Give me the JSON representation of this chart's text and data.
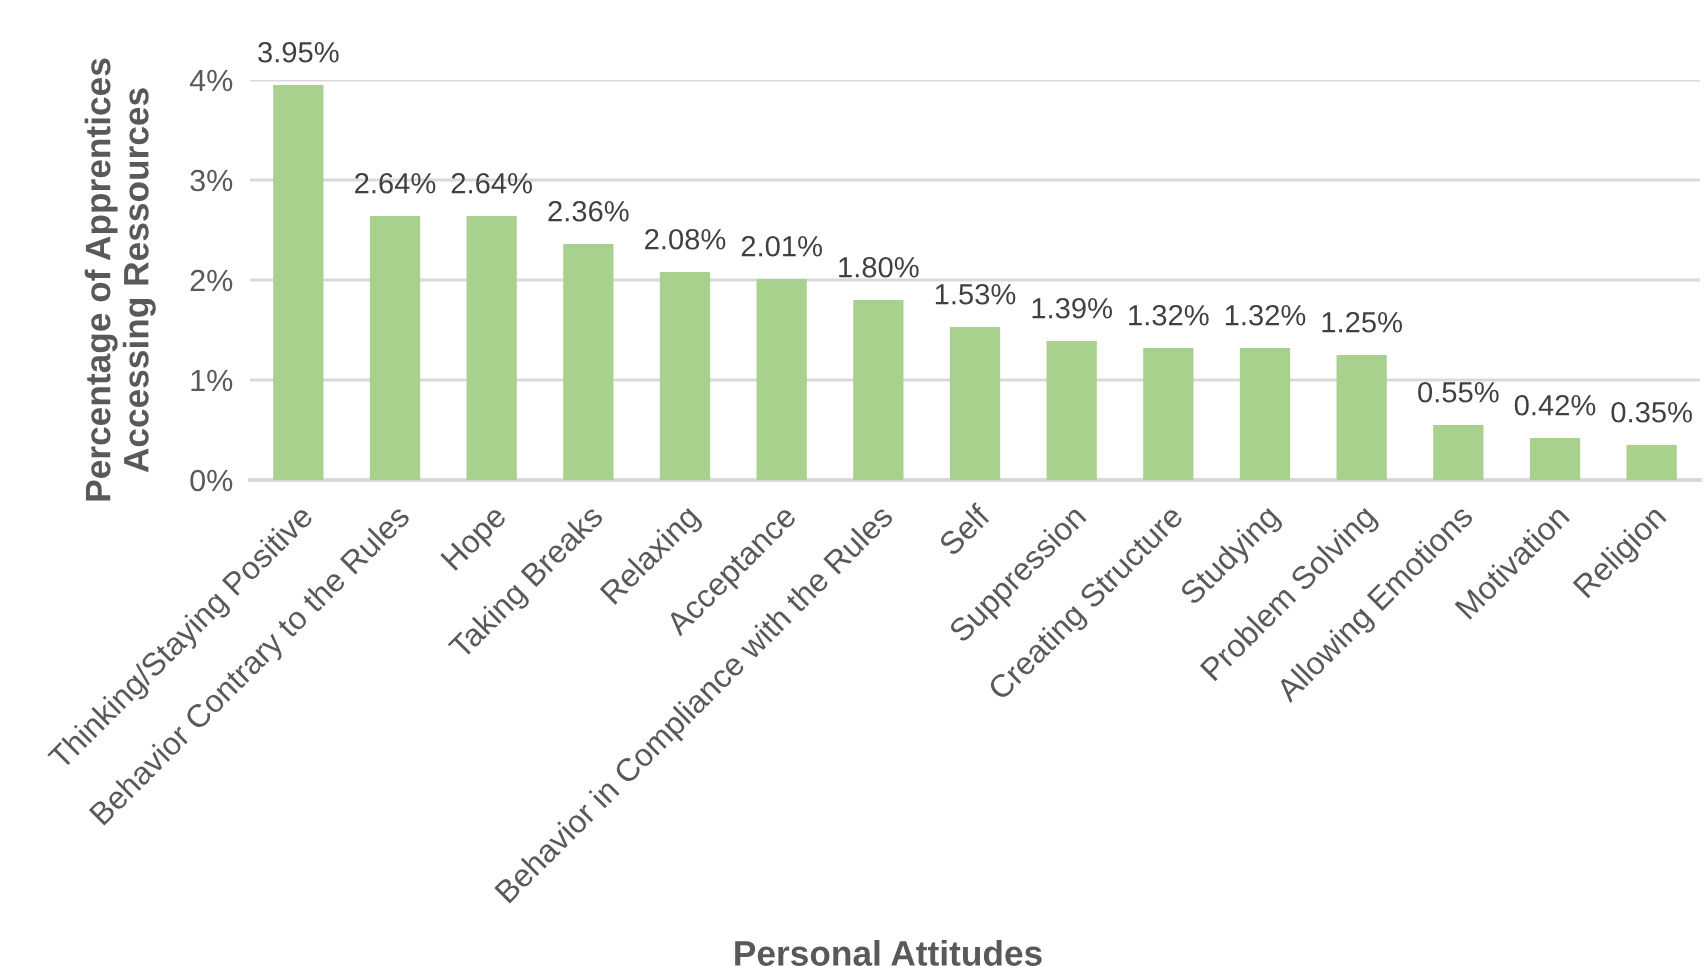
{
  "chart_data": {
    "type": "bar",
    "xlabel": "Personal Attitudes",
    "ylabel": "Percentage of Apprentices\nAccessing Ressources",
    "categories": [
      "Thinking/Staying Positive",
      "Behavior Contrary to the Rules",
      "Hope",
      "Taking Breaks",
      "Relaxing",
      "Acceptance",
      "Behavior in Compliance with the Rules",
      "Self",
      "Suppression",
      "Creating Structure",
      "Studying",
      "Problem Solving",
      "Allowing Emotions",
      "Motivation",
      "Religion"
    ],
    "values": [
      3.95,
      2.64,
      2.64,
      2.36,
      2.08,
      2.01,
      1.8,
      1.53,
      1.39,
      1.32,
      1.32,
      1.25,
      0.55,
      0.42,
      0.35
    ],
    "value_labels": [
      "3.95%",
      "2.64%",
      "2.64%",
      "2.36%",
      "2.08%",
      "2.01%",
      "1.80%",
      "1.53%",
      "1.39%",
      "1.32%",
      "1.32%",
      "1.25%",
      "0.55%",
      "0.42%",
      "0.35%"
    ],
    "color": "#a9d18e",
    "ylim": [
      0,
      4
    ],
    "yticks": [
      {
        "value": 0,
        "label": "0%"
      },
      {
        "value": 1,
        "label": "1%"
      },
      {
        "value": 2,
        "label": "2%"
      },
      {
        "value": 3,
        "label": "3%"
      },
      {
        "value": 4,
        "label": "4%"
      }
    ],
    "grid": "y",
    "legend": false
  }
}
